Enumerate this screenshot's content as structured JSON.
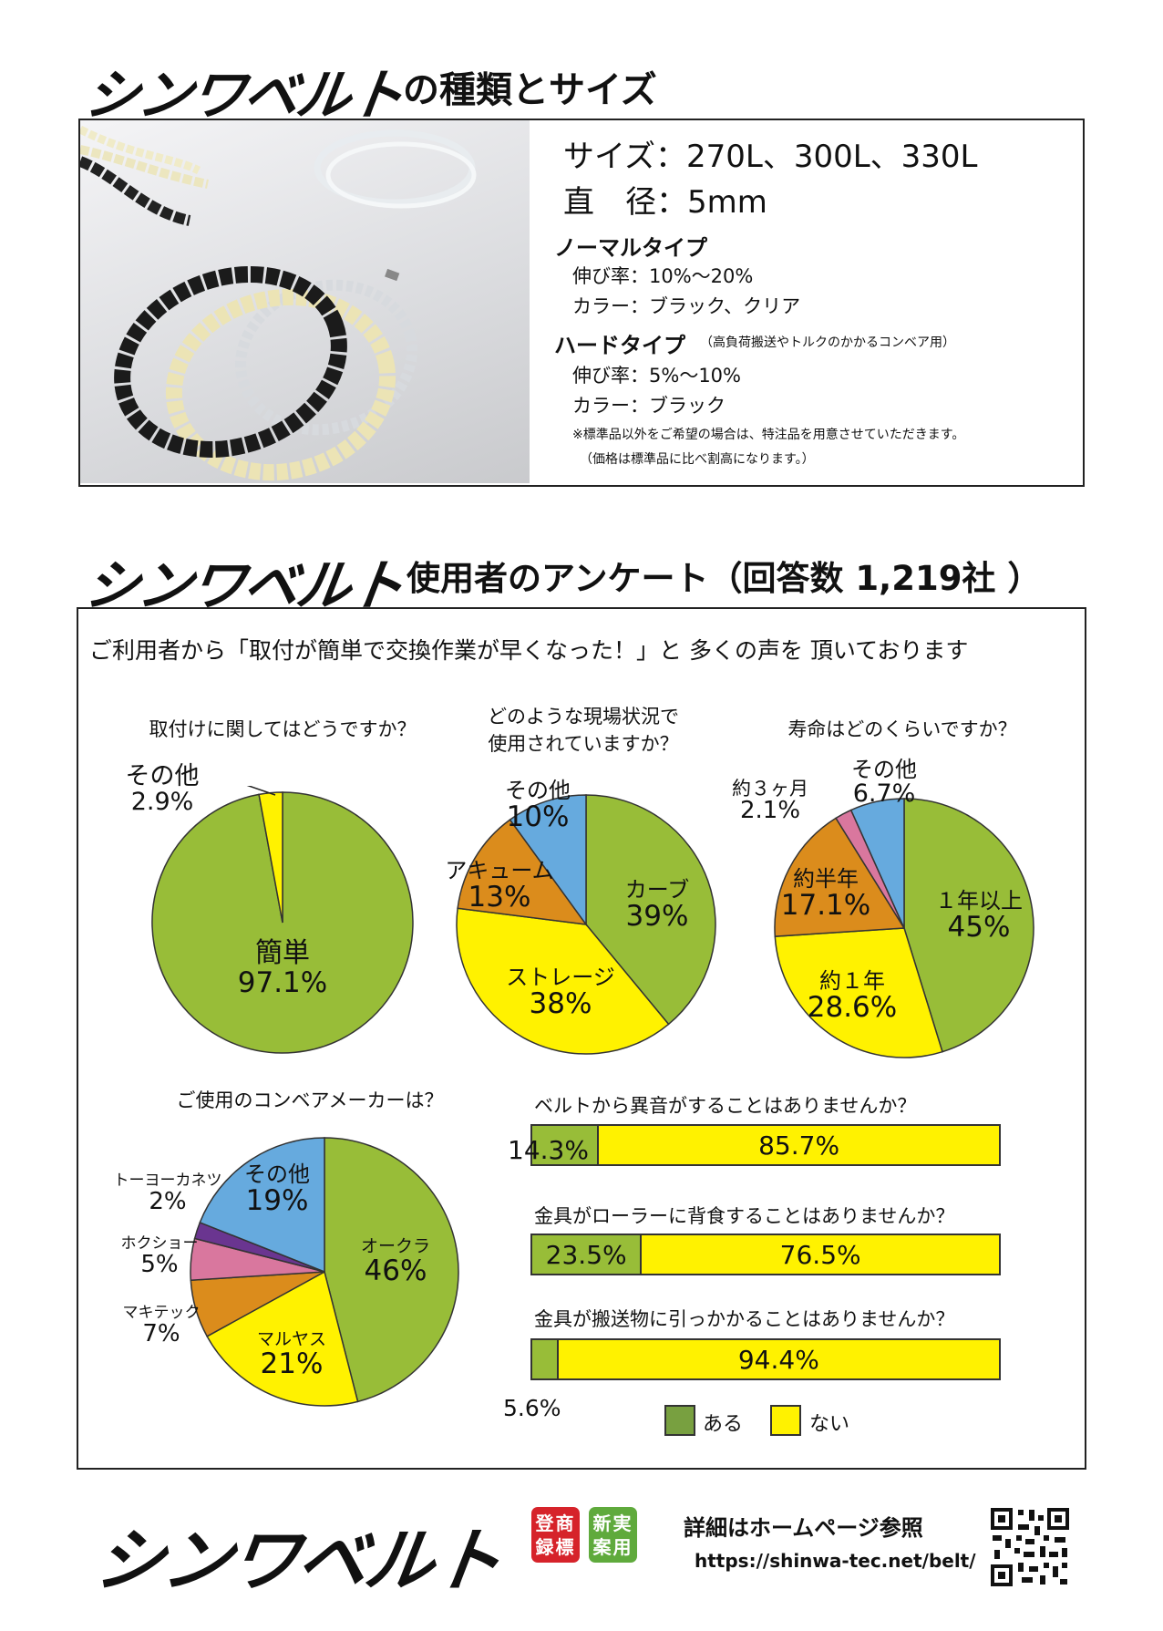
{
  "section1": {
    "brand": "シンワベルト",
    "title": "の種類とサイズ",
    "size_label": "サイズ：270L、300L、330L",
    "diameter_label": "直　径：5mm",
    "normal": {
      "name": "ノーマルタイプ",
      "stretch": "伸び率：10%〜20%",
      "color": "カラー：ブラック、クリア"
    },
    "hard": {
      "name": "ハードタイプ",
      "note": "（高負荷搬送やトルクのかかるコンベア用）",
      "stretch": "伸び率：5%〜10%",
      "color": "カラー：ブラック"
    },
    "note1": "※標準品以外をご希望の場合は、特注品を用意させていただきます。",
    "note2": "（価格は標準品に比べ割高になります。）"
  },
  "section2": {
    "brand": "シンワベルト",
    "title": "使用者のアンケート（回答数 1,219社 ）",
    "intro": "ご利用者から「取付が簡単で交換作業が早くなった！」と 多くの声を 頂いております"
  },
  "colors": {
    "green": "#98bd38",
    "yellow": "#fff200",
    "orange": "#db8c1c",
    "blue": "#66aade",
    "pink": "#d9779e",
    "purple": "#6a3590",
    "legend_green": "#78a040"
  },
  "chart_data": [
    {
      "type": "pie",
      "title": "取付けに関してはどうですか？",
      "slices": [
        {
          "label": "簡単",
          "value": 97.1,
          "display": "97.1%",
          "color": "#98bd38"
        },
        {
          "label": "その他",
          "value": 2.9,
          "display": "2.9%",
          "color": "#fff200"
        }
      ]
    },
    {
      "type": "pie",
      "title_line1": "どのような現場状況で",
      "title_line2": "使用されていますか？",
      "slices": [
        {
          "label": "カーブ",
          "value": 39,
          "display": "39%",
          "color": "#98bd38"
        },
        {
          "label": "ストレージ",
          "value": 38,
          "display": "38%",
          "color": "#fff200"
        },
        {
          "label": "アキューム",
          "value": 13,
          "display": "13%",
          "color": "#db8c1c"
        },
        {
          "label": "その他",
          "value": 10,
          "display": "10%",
          "color": "#66aade"
        }
      ]
    },
    {
      "type": "pie",
      "title": "寿命はどのくらいですか？",
      "slices": [
        {
          "label": "１年以上",
          "value": 45,
          "display": "45%",
          "color": "#98bd38"
        },
        {
          "label": "約１年",
          "value": 28.6,
          "display": "28.6%",
          "color": "#fff200"
        },
        {
          "label": "約半年",
          "value": 17.1,
          "display": "17.1%",
          "color": "#db8c1c"
        },
        {
          "label": "約３ヶ月",
          "value": 2.1,
          "display": "2.1%",
          "color": "#d9779e"
        },
        {
          "label": "その他",
          "value": 6.7,
          "display": "6.7%",
          "color": "#66aade"
        }
      ]
    },
    {
      "type": "pie",
      "title": "ご使用のコンベアメーカーは？",
      "slices": [
        {
          "label": "オークラ",
          "value": 46,
          "display": "46%",
          "color": "#98bd38"
        },
        {
          "label": "マルヤス",
          "value": 21,
          "display": "21%",
          "color": "#fff200"
        },
        {
          "label": "マキテック",
          "value": 7,
          "display": "7%",
          "color": "#db8c1c"
        },
        {
          "label": "ホクショー",
          "value": 5,
          "display": "5%",
          "color": "#d9779e"
        },
        {
          "label": "トーヨーカネツ",
          "value": 2,
          "display": "2%",
          "color": "#6a3590"
        },
        {
          "label": "その他",
          "value": 19,
          "display": "19%",
          "color": "#66aade"
        }
      ]
    },
    {
      "type": "bar",
      "orientation": "horizontal-stacked",
      "series_names": [
        "ある",
        "ない"
      ],
      "bars": [
        {
          "question": "ベルトから異音がすることはありませんか？",
          "yes": 14.3,
          "no": 85.7,
          "yes_label": "14.3%",
          "no_label": "85.7%"
        },
        {
          "question": "金具がローラーに背食することはありませんか？",
          "yes": 23.5,
          "no": 76.5,
          "yes_label": "23.5%",
          "no_label": "76.5%"
        },
        {
          "question": "金具が搬送物に引っかかることはありませんか？",
          "yes": 5.6,
          "no": 94.4,
          "yes_label": "5.6%",
          "no_label": "94.4%"
        }
      ],
      "legend": {
        "yes": "ある",
        "no": "ない"
      }
    }
  ],
  "footer": {
    "brand": "シンワベルト",
    "badge1_line1": "登商",
    "badge1_line2": "録標",
    "badge2_line1": "新実",
    "badge2_line2": "案用",
    "homepage": "詳細はホームページ参照",
    "url": "https://shinwa-tec.net/belt/"
  }
}
